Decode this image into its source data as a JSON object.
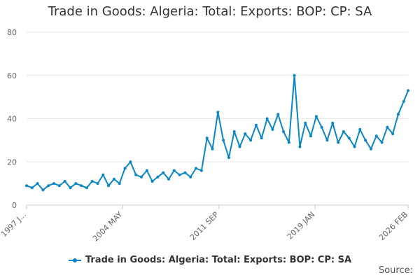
{
  "chart_data": {
    "type": "line",
    "title": "Trade in Goods: Algeria: Total: Exports: BOP: CP: SA",
    "xlabel": "",
    "ylabel": "",
    "ylim": [
      0,
      80
    ],
    "yticks": [
      0,
      20,
      40,
      60,
      80
    ],
    "xlim": [
      "1997 JAN",
      "2026 FEB"
    ],
    "xticks": [
      {
        "label": "1997 J...",
        "date": "1997 JAN"
      },
      {
        "label": "2004 MAY",
        "date": "2004 MAY"
      },
      {
        "label": "2011 SEP",
        "date": "2011 SEP"
      },
      {
        "label": "2019 JAN",
        "date": "2019 JAN"
      },
      {
        "label": "2026 FEB",
        "date": "2026 FEB"
      }
    ],
    "grid": true,
    "legend_position": "bottom",
    "color": "#0a87c4",
    "source": "Source:",
    "series": [
      {
        "name": "Trade in Goods: Algeria: Total: Exports: BOP: CP: SA",
        "points": [
          [
            "1997 JAN",
            9
          ],
          [
            "1997 JUN",
            8
          ],
          [
            "1997 NOV",
            10
          ],
          [
            "1998 APR",
            7
          ],
          [
            "1998 SEP",
            9
          ],
          [
            "1999 FEB",
            10
          ],
          [
            "1999 JUL",
            9
          ],
          [
            "1999 DEC",
            11
          ],
          [
            "2000 MAY",
            8
          ],
          [
            "2000 OCT",
            10
          ],
          [
            "2001 MAR",
            9
          ],
          [
            "2001 AUG",
            8
          ],
          [
            "2002 JAN",
            11
          ],
          [
            "2002 JUN",
            10
          ],
          [
            "2002 NOV",
            14
          ],
          [
            "2003 APR",
            9
          ],
          [
            "2003 SEP",
            12
          ],
          [
            "2004 FEB",
            10
          ],
          [
            "2004 JUL",
            17
          ],
          [
            "2004 DEC",
            20
          ],
          [
            "2005 MAY",
            14
          ],
          [
            "2005 OCT",
            13
          ],
          [
            "2006 MAR",
            16
          ],
          [
            "2006 AUG",
            11
          ],
          [
            "2007 JAN",
            13
          ],
          [
            "2007 JUN",
            15
          ],
          [
            "2007 NOV",
            12
          ],
          [
            "2008 APR",
            16
          ],
          [
            "2008 SEP",
            14
          ],
          [
            "2009 FEB",
            15
          ],
          [
            "2009 JUL",
            13
          ],
          [
            "2009 DEC",
            17
          ],
          [
            "2010 MAY",
            16
          ],
          [
            "2010 OCT",
            31
          ],
          [
            "2011 MAR",
            26
          ],
          [
            "2011 AUG",
            43
          ],
          [
            "2012 JAN",
            30
          ],
          [
            "2012 JUN",
            22
          ],
          [
            "2012 NOV",
            34
          ],
          [
            "2013 APR",
            27
          ],
          [
            "2013 SEP",
            33
          ],
          [
            "2014 FEB",
            30
          ],
          [
            "2014 JUL",
            37
          ],
          [
            "2014 DEC",
            31
          ],
          [
            "2015 MAY",
            40
          ],
          [
            "2015 OCT",
            35
          ],
          [
            "2016 MAR",
            42
          ],
          [
            "2016 AUG",
            34
          ],
          [
            "2017 JAN",
            29
          ],
          [
            "2017 JUN",
            60
          ],
          [
            "2017 NOV",
            27
          ],
          [
            "2018 APR",
            38
          ],
          [
            "2018 SEP",
            32
          ],
          [
            "2019 FEB",
            41
          ],
          [
            "2019 JUL",
            36
          ],
          [
            "2019 DEC",
            30
          ],
          [
            "2020 MAY",
            38
          ],
          [
            "2020 OCT",
            29
          ],
          [
            "2021 MAR",
            34
          ],
          [
            "2021 AUG",
            31
          ],
          [
            "2022 JAN",
            27
          ],
          [
            "2022 JUN",
            35
          ],
          [
            "2022 NOV",
            30
          ],
          [
            "2023 APR",
            26
          ],
          [
            "2023 SEP",
            32
          ],
          [
            "2024 FEB",
            29
          ],
          [
            "2024 JUL",
            36
          ],
          [
            "2024 DEC",
            33
          ],
          [
            "2025 MAY",
            42
          ],
          [
            "2025 OCT",
            48
          ],
          [
            "2026 FEB",
            53
          ]
        ]
      }
    ]
  }
}
